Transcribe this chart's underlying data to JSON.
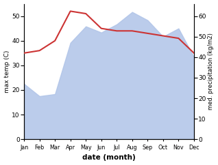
{
  "months": [
    "Jan",
    "Feb",
    "Mar",
    "Apr",
    "May",
    "Jun",
    "Jul",
    "Aug",
    "Sep",
    "Oct",
    "Nov",
    "Dec"
  ],
  "month_positions": [
    0,
    1,
    2,
    3,
    4,
    5,
    6,
    7,
    8,
    9,
    10,
    11
  ],
  "max_temp": [
    35,
    36,
    40,
    52,
    51,
    45,
    44,
    44,
    43,
    42,
    41,
    35
  ],
  "precipitation": [
    27,
    21,
    22,
    47,
    55,
    52,
    56,
    62,
    58,
    50,
    54,
    40
  ],
  "temp_ylim": [
    0,
    55
  ],
  "precip_ylim": [
    0,
    66
  ],
  "temp_yticks": [
    0,
    10,
    20,
    30,
    40,
    50
  ],
  "precip_yticks": [
    0,
    10,
    20,
    30,
    40,
    50,
    60
  ],
  "temp_color": "#cc3333",
  "precip_fill_color": "#b0c4e8",
  "precip_fill_alpha": 0.85,
  "xlabel": "date (month)",
  "ylabel_left": "max temp (C)",
  "ylabel_right": "med. precipitation (kg/m2)",
  "background_color": "#ffffff"
}
